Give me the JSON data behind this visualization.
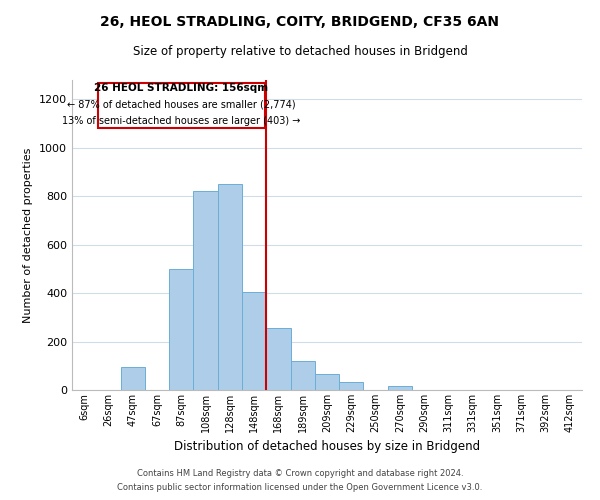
{
  "title": "26, HEOL STRADLING, COITY, BRIDGEND, CF35 6AN",
  "subtitle": "Size of property relative to detached houses in Bridgend",
  "xlabel": "Distribution of detached houses by size in Bridgend",
  "ylabel": "Number of detached properties",
  "bar_labels": [
    "6sqm",
    "26sqm",
    "47sqm",
    "67sqm",
    "87sqm",
    "108sqm",
    "128sqm",
    "148sqm",
    "168sqm",
    "189sqm",
    "209sqm",
    "229sqm",
    "250sqm",
    "270sqm",
    "290sqm",
    "311sqm",
    "331sqm",
    "351sqm",
    "371sqm",
    "392sqm",
    "412sqm"
  ],
  "bar_heights": [
    0,
    0,
    95,
    0,
    500,
    820,
    850,
    405,
    258,
    120,
    68,
    32,
    0,
    17,
    0,
    0,
    0,
    0,
    0,
    0,
    0
  ],
  "bar_color": "#aecde8",
  "bar_edge_color": "#6aaed6",
  "ylim": [
    0,
    1280
  ],
  "yticks": [
    0,
    200,
    400,
    600,
    800,
    1000,
    1200
  ],
  "property_line_color": "#cc0000",
  "annotation_title": "26 HEOL STRADLING: 156sqm",
  "annotation_line1": "← 87% of detached houses are smaller (2,774)",
  "annotation_line2": "13% of semi-detached houses are larger (403) →",
  "annotation_box_color": "#ffffff",
  "annotation_box_edge": "#cc0000",
  "footer1": "Contains HM Land Registry data © Crown copyright and database right 2024.",
  "footer2": "Contains public sector information licensed under the Open Government Licence v3.0.",
  "bg_color": "#ffffff",
  "grid_color": "#d0dde8"
}
